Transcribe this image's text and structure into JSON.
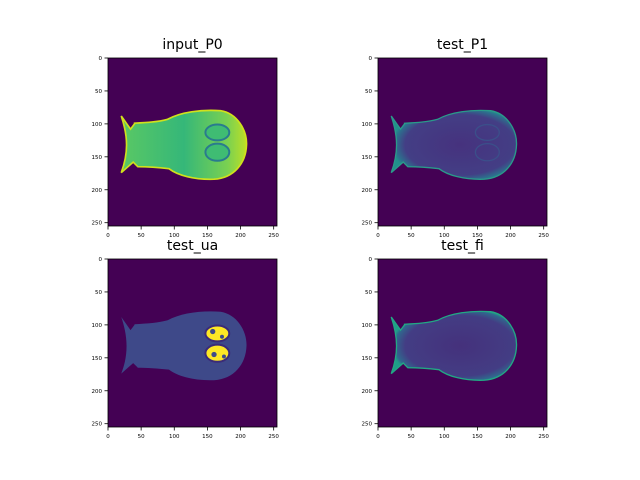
{
  "figure": {
    "colormap": [
      "#440154",
      "#31688e",
      "#35b779",
      "#fde725"
    ],
    "background_color": "#440154",
    "panels": [
      {
        "title": "input_P0"
      },
      {
        "title": "test_P1"
      },
      {
        "title": "test_ua"
      },
      {
        "title": "test_fi"
      }
    ]
  },
  "chart_data": [
    {
      "type": "heatmap",
      "title": "input_P0",
      "xlim": [
        0,
        255
      ],
      "ylim": [
        255,
        0
      ],
      "xticks": [
        0,
        50,
        100,
        150,
        200,
        250
      ],
      "yticks": [
        0,
        50,
        100,
        150,
        200,
        250
      ],
      "grid": false,
      "description_values": {
        "background": 0.0,
        "body": 0.55,
        "edge": 0.95,
        "inclusion": 0.6
      }
    },
    {
      "type": "heatmap",
      "title": "test_P1",
      "xlim": [
        0,
        255
      ],
      "ylim": [
        255,
        0
      ],
      "xticks": [
        0,
        50,
        100,
        150,
        200,
        250
      ],
      "yticks": [
        0,
        50,
        100,
        150,
        200,
        250
      ],
      "grid": false,
      "description_values": {
        "background": 0.0,
        "body": 0.12,
        "edge": 0.55
      }
    },
    {
      "type": "heatmap",
      "title": "test_ua",
      "xlim": [
        0,
        255
      ],
      "ylim": [
        255,
        0
      ],
      "xticks": [
        0,
        50,
        100,
        150,
        200,
        250
      ],
      "yticks": [
        0,
        50,
        100,
        150,
        200,
        250
      ],
      "grid": false,
      "description_values": {
        "background": 0.0,
        "body": 0.22,
        "inclusion": 1.0
      }
    },
    {
      "type": "heatmap",
      "title": "test_fi",
      "xlim": [
        0,
        255
      ],
      "ylim": [
        255,
        0
      ],
      "xticks": [
        0,
        50,
        100,
        150,
        200,
        250
      ],
      "yticks": [
        0,
        50,
        100,
        150,
        200,
        250
      ],
      "grid": false,
      "description_values": {
        "background": 0.0,
        "body": 0.12,
        "edge": 0.5
      }
    }
  ]
}
